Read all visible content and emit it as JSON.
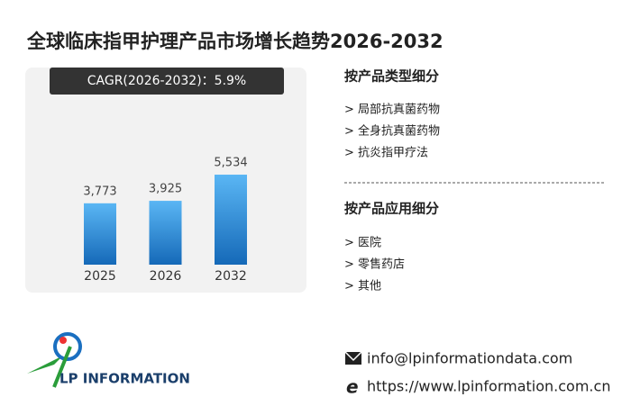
{
  "title": "全球临床指甲护理产品市场增长趋势2026-2032",
  "chart_data": {
    "type": "bar",
    "cagr": "CAGR(2026-2032)：5.9%",
    "categories": [
      "2025",
      "2026",
      "2032"
    ],
    "values": [
      3773,
      3925,
      5534
    ],
    "value_labels": [
      "3,773",
      "3,925",
      "5,534"
    ],
    "color": "#5ab6f4"
  },
  "segments": [
    {
      "heading": "按产品类型细分",
      "items": [
        "> 局部抗真菌药物",
        "> 全身抗真菌药物",
        "> 抗炎指甲疗法"
      ]
    },
    {
      "heading": "按产品应用细分",
      "items": [
        "> 医院",
        "> 零售药店",
        "> 其他"
      ]
    }
  ],
  "logo": "LP INFORMATION",
  "contact": {
    "email": "info@lpinformationdata.com",
    "website": "https://www.lpinformation.com.cn"
  }
}
